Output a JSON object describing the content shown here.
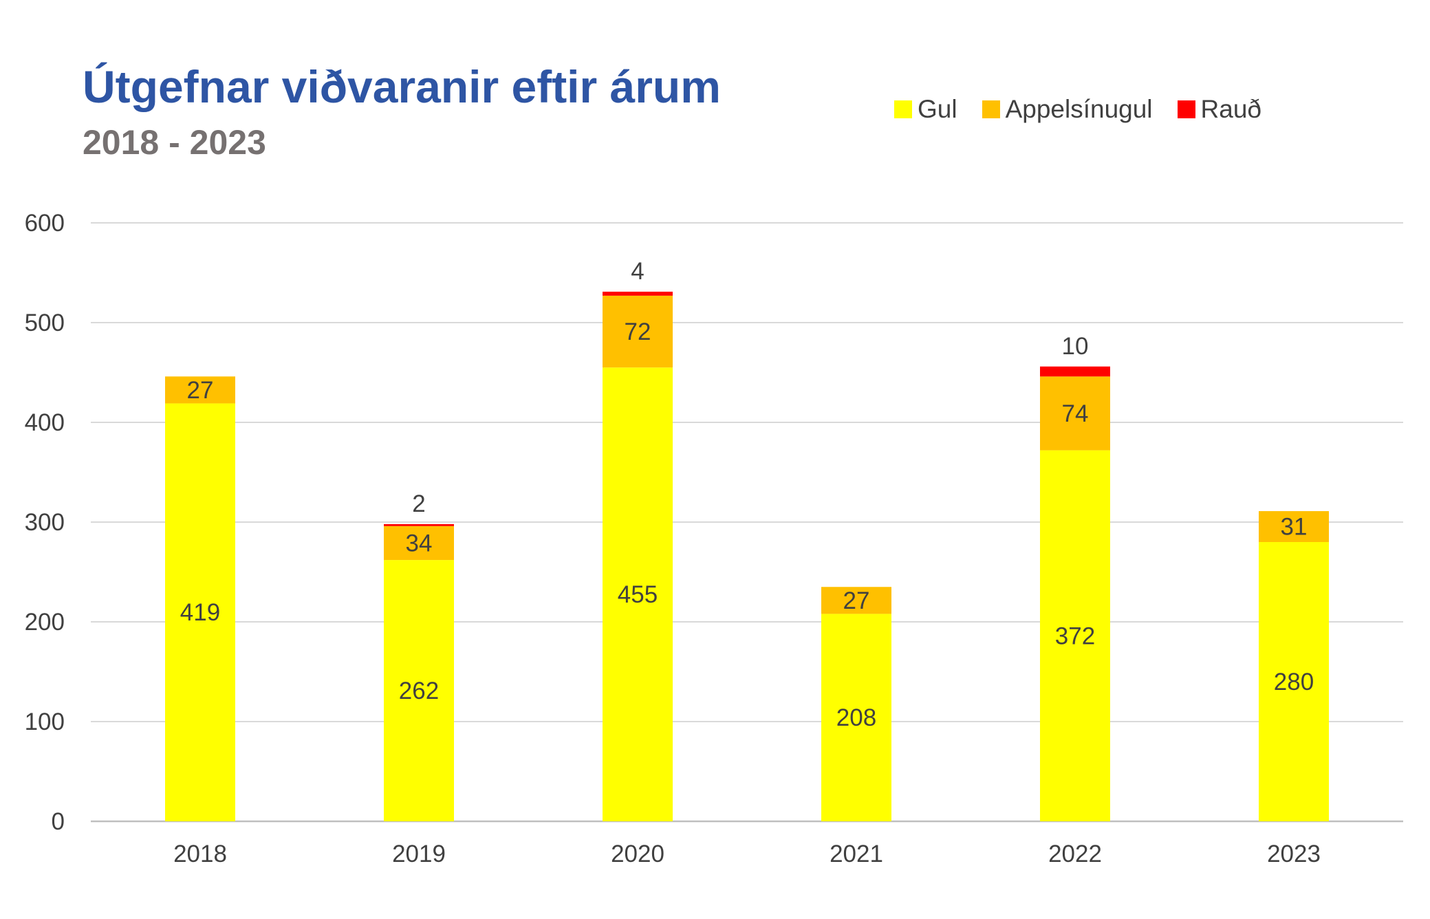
{
  "chart_data": {
    "type": "bar",
    "stacked": true,
    "title": "Útgefnar viðvaranir eftir árum",
    "subtitle": "2018 - 2023",
    "categories": [
      "2018",
      "2019",
      "2020",
      "2021",
      "2022",
      "2023"
    ],
    "series": [
      {
        "name": "Gul",
        "color": "#FFFF00",
        "values": [
          419,
          262,
          455,
          208,
          372,
          280
        ]
      },
      {
        "name": "Appelsínugul",
        "color": "#FFC000",
        "values": [
          27,
          34,
          72,
          27,
          74,
          31
        ]
      },
      {
        "name": "Rauð",
        "color": "#FF0000",
        "values": [
          0,
          2,
          4,
          0,
          10,
          0
        ]
      }
    ],
    "ylim": [
      0,
      600
    ],
    "yticks": [
      0,
      100,
      200,
      300,
      400,
      500,
      600
    ],
    "grid": true,
    "legend_position": "top-right"
  }
}
